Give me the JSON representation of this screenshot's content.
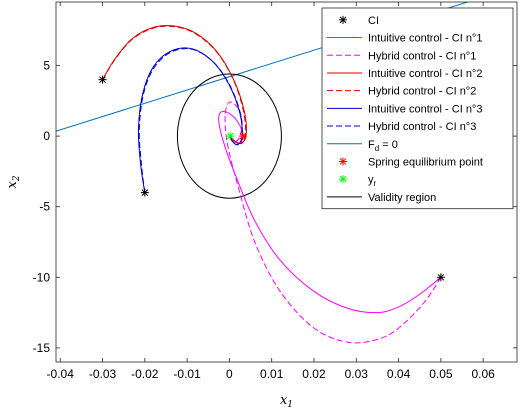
{
  "chart_data": {
    "type": "line",
    "title": "",
    "xlabel": "x1",
    "ylabel": "x2",
    "xlim": [
      -0.041,
      0.068
    ],
    "ylim": [
      -16,
      9.5
    ],
    "xticks": [
      "-0.04",
      "-0.03",
      "-0.02",
      "-0.01",
      "0",
      "0.01",
      "0.02",
      "0.03",
      "0.04",
      "0.05",
      "0.06"
    ],
    "yticks": [
      "5",
      "0",
      "-5",
      "-10",
      "-15"
    ],
    "grid": false,
    "legend_position": "top-right",
    "colors": {
      "magenta": "#ff00ff",
      "red": "#dd0000",
      "blue": "#0000cc",
      "line": "#0072bd",
      "black": "#000000",
      "equilibrium": "#ff0000",
      "reference": "#00ff00"
    },
    "series": [
      {
        "name": "CI",
        "style": "marker",
        "color": "#000000",
        "x": [
          -0.03,
          -0.02,
          0.05
        ],
        "y": [
          4,
          -4,
          -10
        ]
      },
      {
        "name": "Intuitive control - CI n°1",
        "style": "solid",
        "color": "#ff00ff",
        "x": [
          0.05,
          0.045,
          0.04,
          0.035,
          0.028,
          0.02,
          0.012,
          0.006,
          0.002,
          -0.001,
          -0.0025,
          -0.002,
          0.0,
          0.002,
          0.003,
          0.003,
          0.0022,
          0.0012,
          0.0004,
          0.0002
        ],
        "y": [
          -10,
          -11.2,
          -12.1,
          -12.5,
          -12.2,
          -11.0,
          -8.8,
          -6.0,
          -3.2,
          -0.8,
          1.0,
          1.7,
          1.6,
          1.0,
          0.3,
          -0.3,
          -0.5,
          -0.4,
          -0.1,
          0.0
        ]
      },
      {
        "name": "Hybrid control - CI n°1",
        "style": "dashed",
        "color": "#ff00ff",
        "x": [
          0.05,
          0.046,
          0.04,
          0.035,
          0.028,
          0.02,
          0.012,
          0.006,
          0.002,
          -0.0005,
          -0.001,
          0.0,
          0.002,
          0.003,
          0.0025,
          0.0015,
          0.0005,
          0.0002
        ],
        "y": [
          -10,
          -11.8,
          -13.6,
          -14.4,
          -14.6,
          -13.6,
          -11.0,
          -7.5,
          -3.5,
          -0.5,
          1.5,
          2.4,
          2.0,
          1.0,
          0.0,
          -0.4,
          -0.3,
          0.0
        ]
      },
      {
        "name": "Intuitive control - CI n°2",
        "style": "solid",
        "color": "#dd0000",
        "x": [
          -0.03,
          -0.027,
          -0.023,
          -0.018,
          -0.013,
          -0.008,
          -0.003,
          0.001,
          0.0035,
          0.004,
          0.003,
          0.0015,
          0.0005,
          0.0002
        ],
        "y": [
          4,
          5.5,
          6.9,
          7.7,
          7.8,
          7.3,
          6.0,
          4.0,
          1.8,
          0.2,
          -0.5,
          -0.4,
          -0.1,
          0.0
        ]
      },
      {
        "name": "Hybrid control - CI n°2",
        "style": "dashed",
        "color": "#dd0000",
        "x": [
          -0.03,
          -0.027,
          -0.023,
          -0.018,
          -0.013,
          -0.008,
          -0.003,
          0.001,
          0.0033,
          0.0038,
          0.0028,
          0.0014,
          0.0005,
          0.0002
        ],
        "y": [
          4,
          5.45,
          6.85,
          7.65,
          7.75,
          7.25,
          5.95,
          3.95,
          1.8,
          0.2,
          -0.5,
          -0.4,
          -0.1,
          0.0
        ]
      },
      {
        "name": "Intuitive control - CI n°3",
        "style": "solid",
        "color": "#0000cc",
        "x": [
          -0.02,
          -0.021,
          -0.0215,
          -0.0205,
          -0.018,
          -0.014,
          -0.009,
          -0.004,
          0.0,
          0.0025,
          0.003,
          0.002,
          0.0008,
          0.0002
        ],
        "y": [
          -4,
          -2.0,
          0.5,
          3.0,
          4.9,
          6.0,
          6.2,
          5.3,
          3.6,
          1.6,
          0.0,
          -0.6,
          -0.4,
          0.0
        ]
      },
      {
        "name": "Hybrid control - CI n°3",
        "style": "dashed",
        "color": "#0000cc",
        "x": [
          -0.02,
          -0.0208,
          -0.0213,
          -0.0203,
          -0.0178,
          -0.0138,
          -0.0088,
          -0.0038,
          0.0002,
          0.0026,
          0.003,
          0.002,
          0.0008,
          0.0002
        ],
        "y": [
          -4,
          -2.0,
          0.5,
          3.0,
          4.85,
          5.95,
          6.15,
          5.25,
          3.55,
          1.6,
          0.0,
          -0.6,
          -0.4,
          0.0
        ]
      },
      {
        "name": "F_d = 0",
        "label_main": "F",
        "label_sub": "d",
        "label_rest": " = 0",
        "style": "solid",
        "color": "#0072bd",
        "x": [
          -0.041,
          0.068
        ],
        "y": [
          0.35,
          10.6
        ]
      },
      {
        "name": "Spring equilibrium point",
        "style": "marker",
        "color": "#ff0000",
        "x": [
          0.0032
        ],
        "y": [
          0.0
        ]
      },
      {
        "name": "y_r",
        "label_main": "y",
        "label_sub": "r",
        "label_rest": "",
        "style": "marker",
        "color": "#00ff00",
        "x": [
          0.0002
        ],
        "y": [
          0.0
        ]
      },
      {
        "name": "Validity region",
        "style": "ellipse",
        "color": "#000000",
        "cx": 0.0,
        "cy": 0.0,
        "rx": 0.0123,
        "ry": 4.4
      }
    ]
  }
}
